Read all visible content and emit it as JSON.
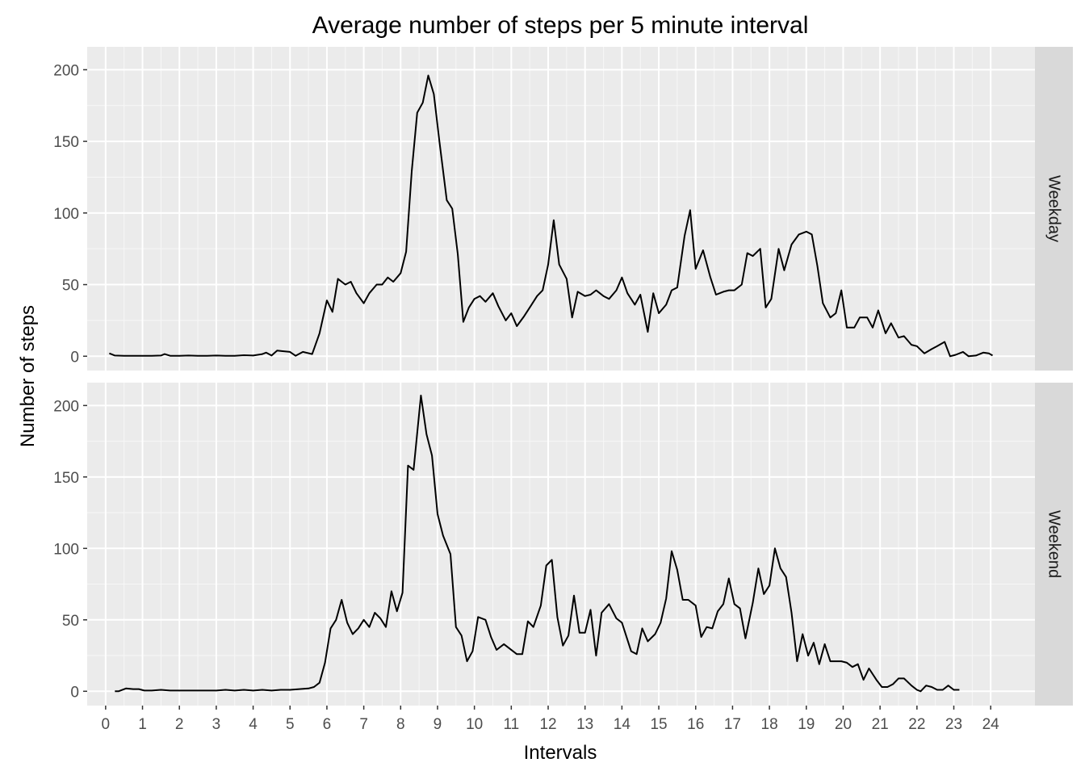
{
  "chart_data": {
    "type": "line",
    "title": "Average number of steps per 5 minute interval",
    "xlabel": "Intervals",
    "ylabel": "Number of steps",
    "xlim": [
      -0.5,
      25.2
    ],
    "ylim": [
      -10,
      216
    ],
    "x_ticks": [
      "0",
      "1",
      "2",
      "3",
      "4",
      "5",
      "6",
      "7",
      "8",
      "9",
      "10",
      "11",
      "12",
      "13",
      "14",
      "15",
      "16",
      "17",
      "18",
      "19",
      "20",
      "21",
      "22",
      "23",
      "24"
    ],
    "y_ticks": [
      "0",
      "50",
      "100",
      "150",
      "200"
    ],
    "grid": true,
    "facets": [
      "Weekday",
      "Weekend"
    ],
    "series": [
      {
        "facet": "Weekday",
        "points": [
          [
            0.1,
            2
          ],
          [
            0.25,
            0.5
          ],
          [
            0.5,
            0.3
          ],
          [
            0.75,
            0.3
          ],
          [
            1,
            0.3
          ],
          [
            1.25,
            0.3
          ],
          [
            1.5,
            0.5
          ],
          [
            1.6,
            1.5
          ],
          [
            1.75,
            0.3
          ],
          [
            2,
            0.3
          ],
          [
            2.25,
            0.5
          ],
          [
            2.5,
            0.3
          ],
          [
            2.75,
            0.3
          ],
          [
            3,
            0.5
          ],
          [
            3.25,
            0.3
          ],
          [
            3.5,
            0.3
          ],
          [
            3.75,
            0.7
          ],
          [
            4,
            0.5
          ],
          [
            4.25,
            1.5
          ],
          [
            4.35,
            2.5
          ],
          [
            4.5,
            0.5
          ],
          [
            4.65,
            4
          ],
          [
            4.8,
            3.5
          ],
          [
            5,
            3
          ],
          [
            5.15,
            0.3
          ],
          [
            5.35,
            3
          ],
          [
            5.6,
            1.5
          ],
          [
            5.8,
            16
          ],
          [
            6,
            39
          ],
          [
            6.15,
            31
          ],
          [
            6.3,
            54
          ],
          [
            6.5,
            50
          ],
          [
            6.65,
            52
          ],
          [
            6.8,
            44
          ],
          [
            7,
            37
          ],
          [
            7.15,
            44
          ],
          [
            7.35,
            50
          ],
          [
            7.5,
            50
          ],
          [
            7.65,
            55
          ],
          [
            7.8,
            52
          ],
          [
            8,
            58
          ],
          [
            8.15,
            73
          ],
          [
            8.3,
            129
          ],
          [
            8.45,
            170
          ],
          [
            8.6,
            177
          ],
          [
            8.75,
            196
          ],
          [
            8.9,
            183
          ],
          [
            9.05,
            150
          ],
          [
            9.25,
            109
          ],
          [
            9.4,
            103
          ],
          [
            9.55,
            71
          ],
          [
            9.7,
            24
          ],
          [
            9.85,
            34
          ],
          [
            10,
            40
          ],
          [
            10.15,
            42
          ],
          [
            10.3,
            38
          ],
          [
            10.5,
            44
          ],
          [
            10.65,
            35
          ],
          [
            10.85,
            25
          ],
          [
            11,
            30
          ],
          [
            11.15,
            21
          ],
          [
            11.35,
            28
          ],
          [
            11.5,
            34
          ],
          [
            11.7,
            42
          ],
          [
            11.85,
            46
          ],
          [
            12,
            64
          ],
          [
            12.15,
            95
          ],
          [
            12.3,
            64
          ],
          [
            12.5,
            54
          ],
          [
            12.65,
            27
          ],
          [
            12.8,
            45
          ],
          [
            13,
            42
          ],
          [
            13.15,
            43
          ],
          [
            13.3,
            46
          ],
          [
            13.5,
            42
          ],
          [
            13.65,
            40
          ],
          [
            13.85,
            46
          ],
          [
            14,
            55
          ],
          [
            14.15,
            44
          ],
          [
            14.35,
            36
          ],
          [
            14.5,
            43
          ],
          [
            14.7,
            17
          ],
          [
            14.85,
            44
          ],
          [
            15,
            30
          ],
          [
            15.2,
            36
          ],
          [
            15.35,
            46
          ],
          [
            15.5,
            48
          ],
          [
            15.7,
            84
          ],
          [
            15.85,
            102
          ],
          [
            16,
            61
          ],
          [
            16.2,
            74
          ],
          [
            16.4,
            55
          ],
          [
            16.55,
            43
          ],
          [
            16.75,
            45
          ],
          [
            16.9,
            46
          ],
          [
            17.05,
            46
          ],
          [
            17.25,
            50
          ],
          [
            17.4,
            72
          ],
          [
            17.55,
            70
          ],
          [
            17.75,
            75
          ],
          [
            17.9,
            34
          ],
          [
            18.05,
            40
          ],
          [
            18.25,
            75
          ],
          [
            18.4,
            60
          ],
          [
            18.6,
            78
          ],
          [
            18.8,
            85
          ],
          [
            19,
            87
          ],
          [
            19.15,
            85
          ],
          [
            19.3,
            63
          ],
          [
            19.45,
            37
          ],
          [
            19.65,
            27
          ],
          [
            19.8,
            30
          ],
          [
            19.95,
            46
          ],
          [
            20.1,
            20
          ],
          [
            20.3,
            20
          ],
          [
            20.45,
            27
          ],
          [
            20.65,
            27
          ],
          [
            20.8,
            20
          ],
          [
            20.95,
            32
          ],
          [
            21.15,
            16
          ],
          [
            21.3,
            23
          ],
          [
            21.5,
            13
          ],
          [
            21.65,
            14
          ],
          [
            21.85,
            8
          ],
          [
            22,
            7
          ],
          [
            22.2,
            2
          ],
          [
            22.4,
            5
          ],
          [
            22.55,
            7
          ],
          [
            22.75,
            10
          ],
          [
            22.9,
            0
          ],
          [
            23.05,
            1
          ],
          [
            23.25,
            3
          ],
          [
            23.4,
            0
          ],
          [
            23.6,
            0.5
          ],
          [
            23.8,
            2.5
          ],
          [
            23.95,
            2
          ],
          [
            24.05,
            0.5
          ]
        ]
      },
      {
        "facet": "Weekend",
        "points": [
          [
            0.25,
            0
          ],
          [
            0.35,
            0
          ],
          [
            0.55,
            2
          ],
          [
            0.75,
            1.5
          ],
          [
            0.9,
            1.5
          ],
          [
            1.05,
            0.5
          ],
          [
            1.25,
            0.5
          ],
          [
            1.5,
            1
          ],
          [
            1.75,
            0.5
          ],
          [
            2,
            0.5
          ],
          [
            2.5,
            0.5
          ],
          [
            3,
            0.5
          ],
          [
            3.25,
            1
          ],
          [
            3.5,
            0.5
          ],
          [
            3.75,
            1
          ],
          [
            4,
            0.5
          ],
          [
            4.25,
            1
          ],
          [
            4.5,
            0.5
          ],
          [
            4.75,
            1
          ],
          [
            5,
            1
          ],
          [
            5.25,
            1.5
          ],
          [
            5.5,
            2
          ],
          [
            5.65,
            3
          ],
          [
            5.8,
            6
          ],
          [
            5.95,
            20
          ],
          [
            6.1,
            44
          ],
          [
            6.25,
            50
          ],
          [
            6.4,
            64
          ],
          [
            6.55,
            48
          ],
          [
            6.7,
            40
          ],
          [
            6.85,
            44
          ],
          [
            7,
            50
          ],
          [
            7.15,
            45
          ],
          [
            7.3,
            55
          ],
          [
            7.45,
            51
          ],
          [
            7.6,
            45
          ],
          [
            7.75,
            70
          ],
          [
            7.9,
            56
          ],
          [
            8.05,
            69
          ],
          [
            8.2,
            158
          ],
          [
            8.35,
            155
          ],
          [
            8.55,
            207
          ],
          [
            8.7,
            180
          ],
          [
            8.85,
            165
          ],
          [
            9,
            124
          ],
          [
            9.15,
            109
          ],
          [
            9.35,
            96
          ],
          [
            9.5,
            45
          ],
          [
            9.65,
            39
          ],
          [
            9.8,
            21
          ],
          [
            9.95,
            28
          ],
          [
            10.1,
            52
          ],
          [
            10.3,
            50
          ],
          [
            10.45,
            38
          ],
          [
            10.6,
            29
          ],
          [
            10.8,
            33
          ],
          [
            10.95,
            30
          ],
          [
            11.15,
            26
          ],
          [
            11.3,
            26
          ],
          [
            11.45,
            49
          ],
          [
            11.6,
            45
          ],
          [
            11.8,
            60
          ],
          [
            11.95,
            88
          ],
          [
            12.1,
            92
          ],
          [
            12.25,
            52
          ],
          [
            12.4,
            32
          ],
          [
            12.55,
            39
          ],
          [
            12.7,
            67
          ],
          [
            12.85,
            41
          ],
          [
            13,
            41
          ],
          [
            13.15,
            57
          ],
          [
            13.3,
            25
          ],
          [
            13.45,
            55
          ],
          [
            13.65,
            61
          ],
          [
            13.85,
            51
          ],
          [
            14,
            48
          ],
          [
            14.25,
            28
          ],
          [
            14.4,
            26
          ],
          [
            14.55,
            44
          ],
          [
            14.7,
            35
          ],
          [
            14.9,
            40
          ],
          [
            15.05,
            48
          ],
          [
            15.2,
            65
          ],
          [
            15.35,
            98
          ],
          [
            15.5,
            85
          ],
          [
            15.65,
            64
          ],
          [
            15.8,
            64
          ],
          [
            16,
            60
          ],
          [
            16.15,
            38
          ],
          [
            16.3,
            45
          ],
          [
            16.45,
            44
          ],
          [
            16.6,
            56
          ],
          [
            16.75,
            61
          ],
          [
            16.9,
            79
          ],
          [
            17.05,
            61
          ],
          [
            17.2,
            58
          ],
          [
            17.35,
            37
          ],
          [
            17.55,
            62
          ],
          [
            17.7,
            86
          ],
          [
            17.85,
            68
          ],
          [
            18,
            74
          ],
          [
            18.15,
            100
          ],
          [
            18.3,
            86
          ],
          [
            18.45,
            80
          ],
          [
            18.6,
            55
          ],
          [
            18.75,
            21
          ],
          [
            18.9,
            40
          ],
          [
            19.05,
            25
          ],
          [
            19.2,
            34
          ],
          [
            19.35,
            19
          ],
          [
            19.5,
            33
          ],
          [
            19.65,
            21
          ],
          [
            19.8,
            21
          ],
          [
            19.95,
            21
          ],
          [
            20.1,
            20
          ],
          [
            20.25,
            17
          ],
          [
            20.4,
            19
          ],
          [
            20.55,
            8
          ],
          [
            20.7,
            16
          ],
          [
            20.9,
            8
          ],
          [
            21.05,
            3
          ],
          [
            21.2,
            3
          ],
          [
            21.35,
            5
          ],
          [
            21.5,
            9
          ],
          [
            21.65,
            9
          ],
          [
            21.85,
            4
          ],
          [
            22,
            1
          ],
          [
            22.1,
            0
          ],
          [
            22.25,
            4
          ],
          [
            22.4,
            3
          ],
          [
            22.55,
            1
          ],
          [
            22.7,
            1
          ],
          [
            22.85,
            4
          ],
          [
            23,
            1
          ],
          [
            23.15,
            1
          ]
        ]
      }
    ]
  }
}
